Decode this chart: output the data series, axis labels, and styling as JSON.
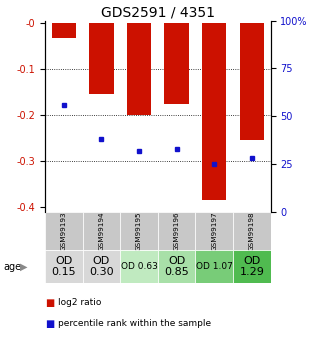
{
  "title": "GDS2591 / 4351",
  "samples": [
    "GSM99193",
    "GSM99194",
    "GSM99195",
    "GSM99196",
    "GSM99197",
    "GSM99198"
  ],
  "log2_ratios": [
    -0.032,
    -0.155,
    -0.2,
    -0.175,
    -0.385,
    -0.255
  ],
  "percentile_ranks": [
    0.56,
    0.38,
    0.32,
    0.33,
    0.25,
    0.28
  ],
  "od_labels": [
    "OD\n0.15",
    "OD\n0.30",
    "OD 0.63",
    "OD\n0.85",
    "OD 1.07",
    "OD\n1.29"
  ],
  "od_bg_colors": [
    "#d8d8d8",
    "#d8d8d8",
    "#c0eac0",
    "#a8e0a8",
    "#78cc78",
    "#50bb50"
  ],
  "od_font_sizes": [
    8,
    8,
    6.5,
    8,
    6.5,
    8
  ],
  "bar_color": "#cc1100",
  "blue_color": "#1111cc",
  "ylim_left": [
    -0.41,
    0.005
  ],
  "yticks_left": [
    0.0,
    -0.1,
    -0.2,
    -0.3,
    -0.4
  ],
  "ytick_labels_left": [
    "-0",
    "-0.1",
    "-0.2",
    "-0.3",
    "-0.4"
  ],
  "yticks_right": [
    0.0,
    0.25,
    0.5,
    0.75,
    1.0
  ],
  "ytick_labels_right": [
    "0",
    "25",
    "50",
    "75",
    "100%"
  ],
  "bar_width": 0.65,
  "title_fontsize": 10,
  "tick_fontsize": 7,
  "legend_red": "log2 ratio",
  "legend_blue": "percentile rank within the sample",
  "age_label": "age",
  "sample_row_bg": "#c8c8c8"
}
